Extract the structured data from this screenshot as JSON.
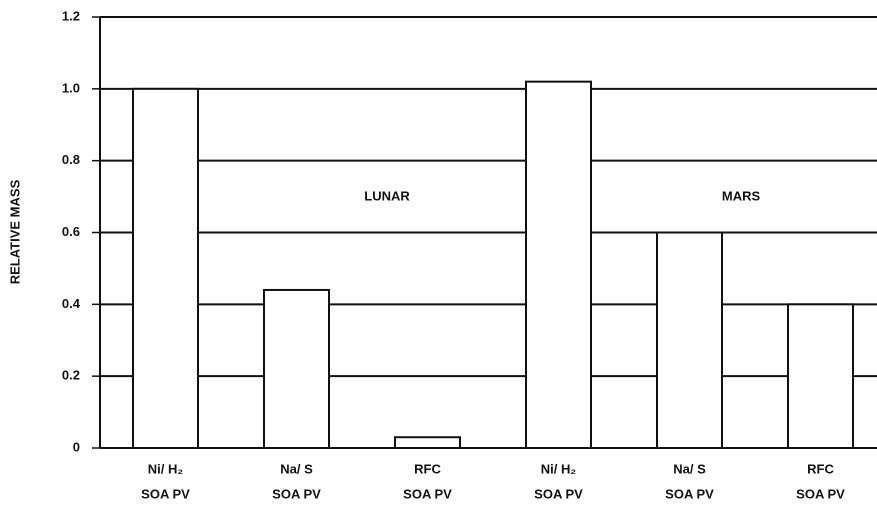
{
  "chart_data": {
    "type": "bar",
    "y_label": "RELATIVE MASS",
    "categories": [
      [
        "Ni/ H₂",
        "SOA PV"
      ],
      [
        "Na/ S",
        "SOA PV"
      ],
      [
        "RFC",
        "SOA PV"
      ],
      [
        "Ni/ H₂",
        "SOA PV"
      ],
      [
        "Na/ S",
        "SOA PV"
      ],
      [
        "RFC",
        "SOA PV"
      ]
    ],
    "values": [
      1.0,
      0.44,
      0.03,
      1.02,
      0.6,
      0.4
    ],
    "color": "#ffffff",
    "ylim": [
      0,
      1.2
    ],
    "yticks": [
      0,
      0.2,
      0.4,
      0.6,
      0.8,
      {
        "value": 1,
        "label": "1.0"
      },
      1.2
    ],
    "grid": true,
    "annotations": [
      "LUNAR",
      "MARS"
    ]
  }
}
